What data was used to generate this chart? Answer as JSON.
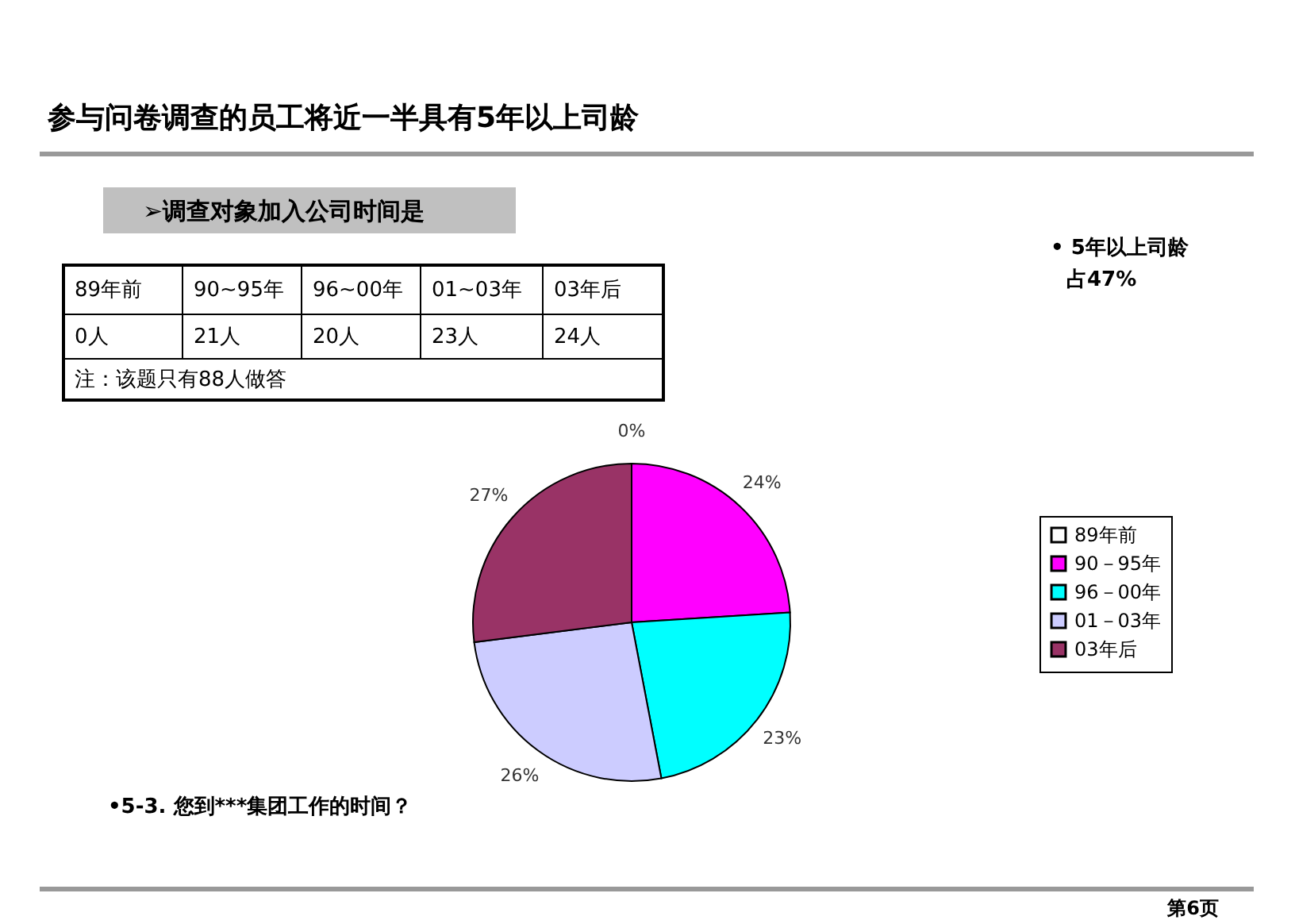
{
  "chart_data": {
    "type": "pie",
    "title": "参与问卷调查的员工将近一半具有5年以上司龄",
    "subtitle": "➢调查对象加入公司时间是",
    "categories": [
      "89年前",
      "90－95年",
      "96－00年",
      "01－03年",
      "03年后"
    ],
    "values": [
      0,
      24,
      23,
      26,
      27
    ],
    "value_labels": [
      "0%",
      "24%",
      "23%",
      "26%",
      "27%"
    ],
    "colors": [
      "#ffffff",
      "#ff00ff",
      "#00ffff",
      "#ccccff",
      "#993366"
    ],
    "legend": "right",
    "annotations": [
      "89年前",
      "90~95年",
      "96~00年",
      "01~03年",
      "03年后",
      "0人",
      "21人",
      "20人",
      "23人",
      "24人",
      "注：该题只有88人做答",
      "• 5年以上司龄",
      "占47%",
      "•5-3. 您到***集团工作的时间？",
      "第6页"
    ]
  }
}
